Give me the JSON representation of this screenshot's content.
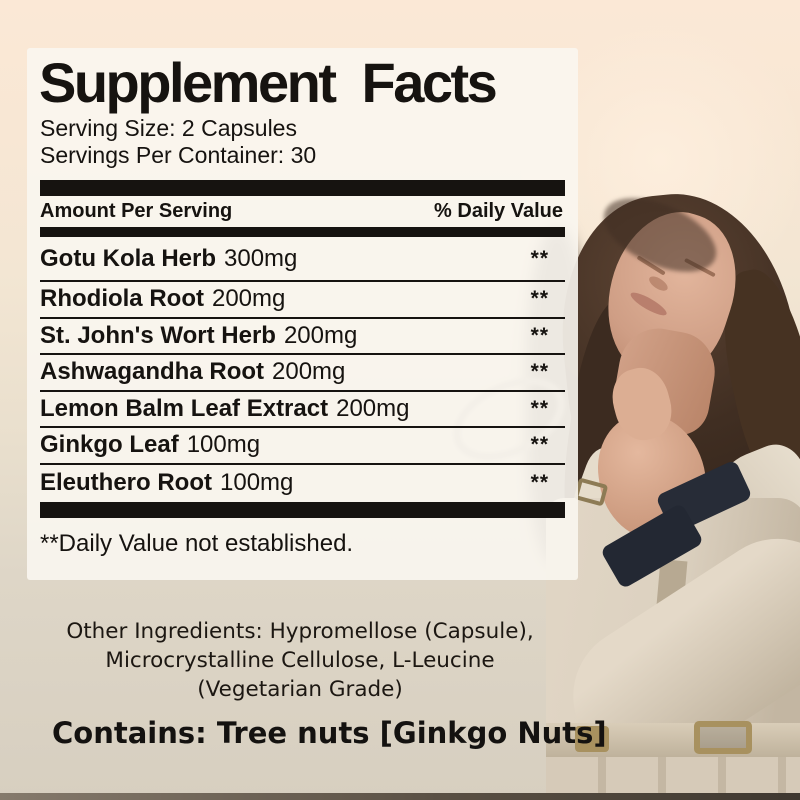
{
  "colors": {
    "background_top": "#fbe8d6",
    "background_mid": "#f3e6d3",
    "background_bottom": "#d7cfc0",
    "panel": "#faf6f0",
    "ink": "#161310",
    "hair": "#402e22",
    "skin": "#d4a58c",
    "coat": "#dcd1c0",
    "coat_shadow": "#c3b6a2",
    "cuff": "#272c37",
    "belt_gold": "#a8915f"
  },
  "label": {
    "title": "Supplement Facts",
    "serving_size": "Serving Size: 2 Capsules",
    "servings_per_container": "Servings Per Container: 30",
    "columns": {
      "amount": "Amount Per Serving",
      "daily_value": "% Daily Value"
    },
    "rows": [
      {
        "name": "Gotu Kola Herb",
        "amount": "300mg",
        "daily_value": "**"
      },
      {
        "name": "Rhodiola Root",
        "amount": "200mg",
        "daily_value": "**"
      },
      {
        "name": "St. John's Wort Herb",
        "amount": "200mg",
        "daily_value": "**"
      },
      {
        "name": "Ashwagandha Root",
        "amount": "200mg",
        "daily_value": "**"
      },
      {
        "name": "Lemon Balm Leaf Extract",
        "amount": "200mg",
        "daily_value": "**"
      },
      {
        "name": "Ginkgo Leaf",
        "amount": "100mg",
        "daily_value": "**"
      },
      {
        "name": "Eleuthero Root",
        "amount": "100mg",
        "daily_value": "**"
      }
    ],
    "footnote": "**Daily Value not established."
  },
  "footer": {
    "other_ingredients_lines": [
      "Other Ingredients: Hypromellose (Capsule),",
      "Microcrystalline Cellulose, L-Leucine",
      "(Vegetarian Grade)"
    ],
    "contains": "Contains: Tree nuts [Ginkgo Nuts]"
  }
}
